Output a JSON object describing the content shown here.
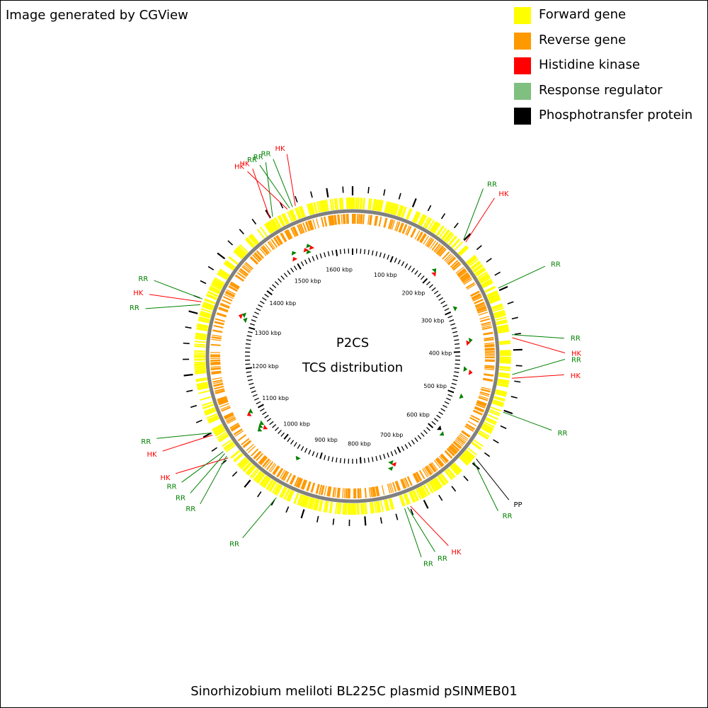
{
  "credit": "Image generated by CGView",
  "caption": "Sinorhizobium meliloti BL225C plasmid pSINMEB01",
  "center_title": [
    "P2CS",
    "TCS distribution"
  ],
  "legend": [
    {
      "label": "Forward gene",
      "color": "#ffff00"
    },
    {
      "label": "Reverse gene",
      "color": "#ff9900"
    },
    {
      "label": "Histidine kinase",
      "color": "#ff0000"
    },
    {
      "label": "Response regulator",
      "color": "#7fbf7f"
    },
    {
      "label": "Phosphotransfer protein",
      "color": "#000000"
    }
  ],
  "colors": {
    "forward": "#ffff00",
    "reverse": "#ff9900",
    "hk": "#ff0000",
    "rr": "#008000",
    "pp": "#000000",
    "backbone": "#808080"
  },
  "sequence_length_kbp": 1640,
  "tick_labels": [
    "100 kbp",
    "200 kbp",
    "300 kbp",
    "400 kbp",
    "500 kbp",
    "600 kbp",
    "700 kbp",
    "800 kbp",
    "900 kbp",
    "1000 kbp",
    "1100 kbp",
    "1200 kbp",
    "1300 kbp",
    "1400 kbp",
    "1500 kbp",
    "1600 kbp"
  ],
  "features": [
    {
      "type": "RR",
      "kbp": 199
    },
    {
      "type": "HK",
      "kbp": 204
    },
    {
      "type": "RR",
      "kbp": 296
    },
    {
      "type": "RR",
      "kbp": 375
    },
    {
      "type": "HK",
      "kbp": 380
    },
    {
      "type": "RR",
      "kbp": 440
    },
    {
      "type": "HK",
      "kbp": 446
    },
    {
      "type": "RR",
      "kbp": 503
    },
    {
      "type": "PP",
      "kbp": 591
    },
    {
      "type": "RR",
      "kbp": 597
    },
    {
      "type": "HK",
      "kbp": 724
    },
    {
      "type": "RR",
      "kbp": 729
    },
    {
      "type": "RR",
      "kbp": 734
    },
    {
      "type": "RR",
      "kbp": 949
    },
    {
      "type": "HK",
      "kbp": 1051
    },
    {
      "type": "RR",
      "kbp": 1055
    },
    {
      "type": "RR",
      "kbp": 1060
    },
    {
      "type": "RR",
      "kbp": 1064
    },
    {
      "type": "HK",
      "kbp": 1096
    },
    {
      "type": "RR",
      "kbp": 1100
    },
    {
      "type": "RR",
      "kbp": 1315
    },
    {
      "type": "HK",
      "kbp": 1320
    },
    {
      "type": "RR",
      "kbp": 1325
    },
    {
      "type": "HK",
      "kbp": 1499
    },
    {
      "type": "RR",
      "kbp": 1504
    },
    {
      "type": "HK",
      "kbp": 1531
    },
    {
      "type": "RR",
      "kbp": 1535
    },
    {
      "type": "RR",
      "kbp": 1540
    },
    {
      "type": "HK",
      "kbp": 1545
    }
  ]
}
